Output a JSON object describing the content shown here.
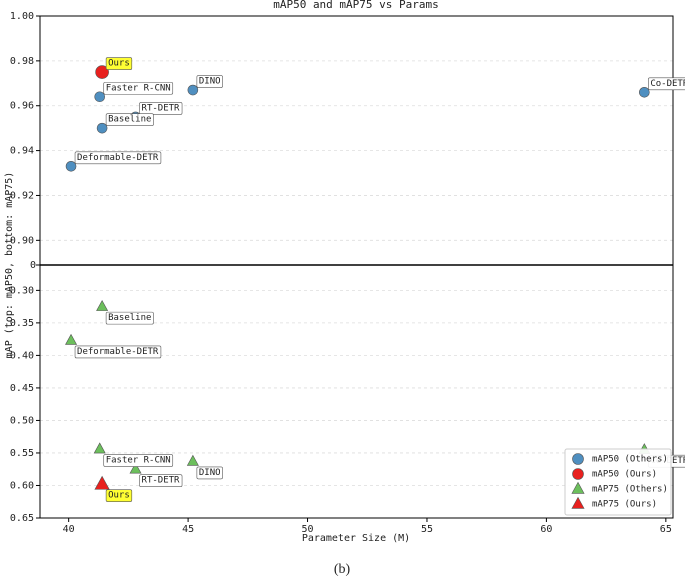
{
  "chart_data": {
    "type": "scatter",
    "title": "mAP50 and mAP75 vs Params",
    "x_label": "Parameter Size (M)",
    "y_label": "mAP (top: mAP50, bottom: mAP75)",
    "divider_label": "0",
    "caption": "(b)",
    "xlim": [
      38.8,
      65.3
    ],
    "xticks": [
      40,
      45,
      50,
      55,
      60,
      65
    ],
    "ylim": [
      0.889,
      1.0
    ],
    "yticks": [
      {
        "value": 0.9,
        "label": "0.90"
      },
      0.92,
      0.94,
      0.96,
      0.98,
      {
        "value": 1.0,
        "label": "1.00"
      }
    ],
    "y2lim": [
      0.261,
      0.65
    ],
    "y2_inverted": true,
    "y2ticks": [
      {
        "value": 0.3,
        "label": "0.30"
      },
      0.35,
      {
        "value": 0.4,
        "label": "0.40"
      },
      0.45,
      {
        "value": 0.5,
        "label": "0.50"
      },
      0.55,
      {
        "value": 0.6,
        "label": "0.60"
      },
      0.65
    ],
    "grid": true,
    "legend": "lower right",
    "series": [
      {
        "name": "mAP50 (Others)",
        "color": "#4f8fc0",
        "marker": "circle",
        "axis": "y",
        "x": [
          41.3,
          45.2,
          42.8,
          41.4,
          40.1,
          64.1
        ],
        "values": [
          0.964,
          0.967,
          0.955,
          0.95,
          0.933,
          0.966
        ],
        "point_labels": [
          "Faster R-CNN",
          "DINO",
          "RT-DETR",
          "Baseline",
          "Deformable-DETR",
          "Co-DETR"
        ]
      },
      {
        "name": "mAP50 (Ours)",
        "color": "#e8201e",
        "marker": "circle",
        "axis": "y",
        "x": [
          41.4
        ],
        "values": [
          0.975
        ],
        "point_labels": [
          "Ours"
        ]
      },
      {
        "name": "mAP75 (Others)",
        "color": "#6cbf5c",
        "marker": "triangle",
        "axis": "y2",
        "x": [
          41.4,
          40.1,
          41.3,
          42.8,
          45.2,
          64.1
        ],
        "values": [
          0.325,
          0.377,
          0.544,
          0.575,
          0.563,
          0.545
        ],
        "point_labels": [
          "Baseline",
          "Deformable-DETR",
          "Faster R-CNN",
          "RT-DETR",
          "DINO",
          "Co-DETR"
        ]
      },
      {
        "name": "mAP75 (Ours)",
        "color": "#e8201e",
        "marker": "triangle",
        "axis": "y2",
        "x": [
          41.4
        ],
        "values": [
          0.598
        ],
        "point_labels": [
          "Ours"
        ]
      }
    ]
  }
}
